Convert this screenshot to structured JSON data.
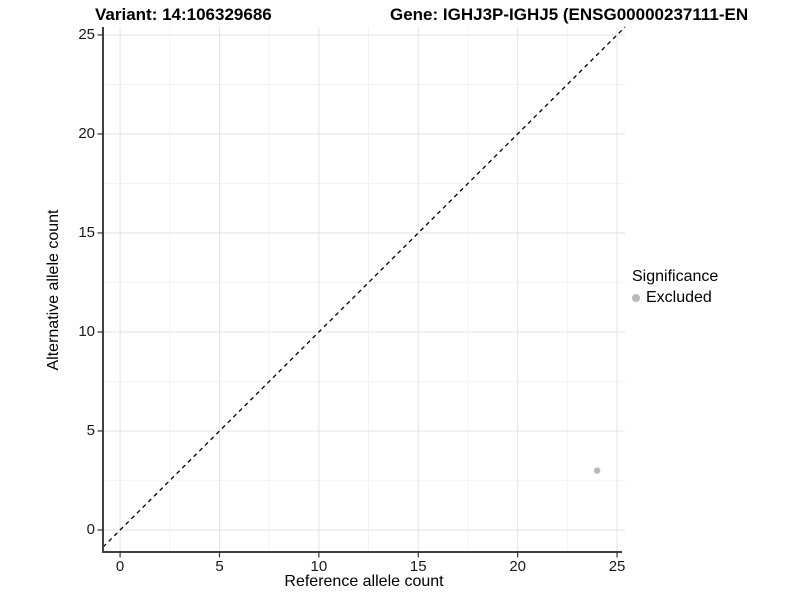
{
  "titles": {
    "variant": "Variant: 14:106329686",
    "gene": "Gene: IGHJ3P-IGHJ5 (ENSG00000237111-EN"
  },
  "chart_data": {
    "type": "scatter",
    "xlabel": "Reference allele count",
    "ylabel": "Alternative allele count",
    "xlim": [
      -0.86,
      25.4
    ],
    "ylim": [
      -1.11,
      25.4
    ],
    "x_ticks": [
      0,
      5,
      10,
      15,
      20,
      25
    ],
    "y_ticks": [
      0,
      5,
      10,
      15,
      20,
      25
    ],
    "x_minor_ticks": [
      2.5,
      7.5,
      12.5,
      17.5,
      22.5
    ],
    "y_minor_ticks": [
      2.5,
      7.5,
      12.5,
      17.5,
      22.5
    ],
    "grid": {
      "major_color": "#e5e5e5",
      "minor_color": "#f0f0f0",
      "on": true
    },
    "axis_color": "#404040",
    "tick_color": "#333333",
    "identity_line": {
      "equation": "y = x",
      "style": "dashed",
      "color": "#000000"
    },
    "series": [
      {
        "name": "Excluded",
        "color": "#b9b9b9",
        "points": [
          {
            "x": 24,
            "y": 3
          }
        ]
      }
    ],
    "legend": {
      "title": "Significance",
      "position": "right",
      "items": [
        {
          "label": "Excluded",
          "color": "#b9b9b9"
        }
      ]
    }
  }
}
